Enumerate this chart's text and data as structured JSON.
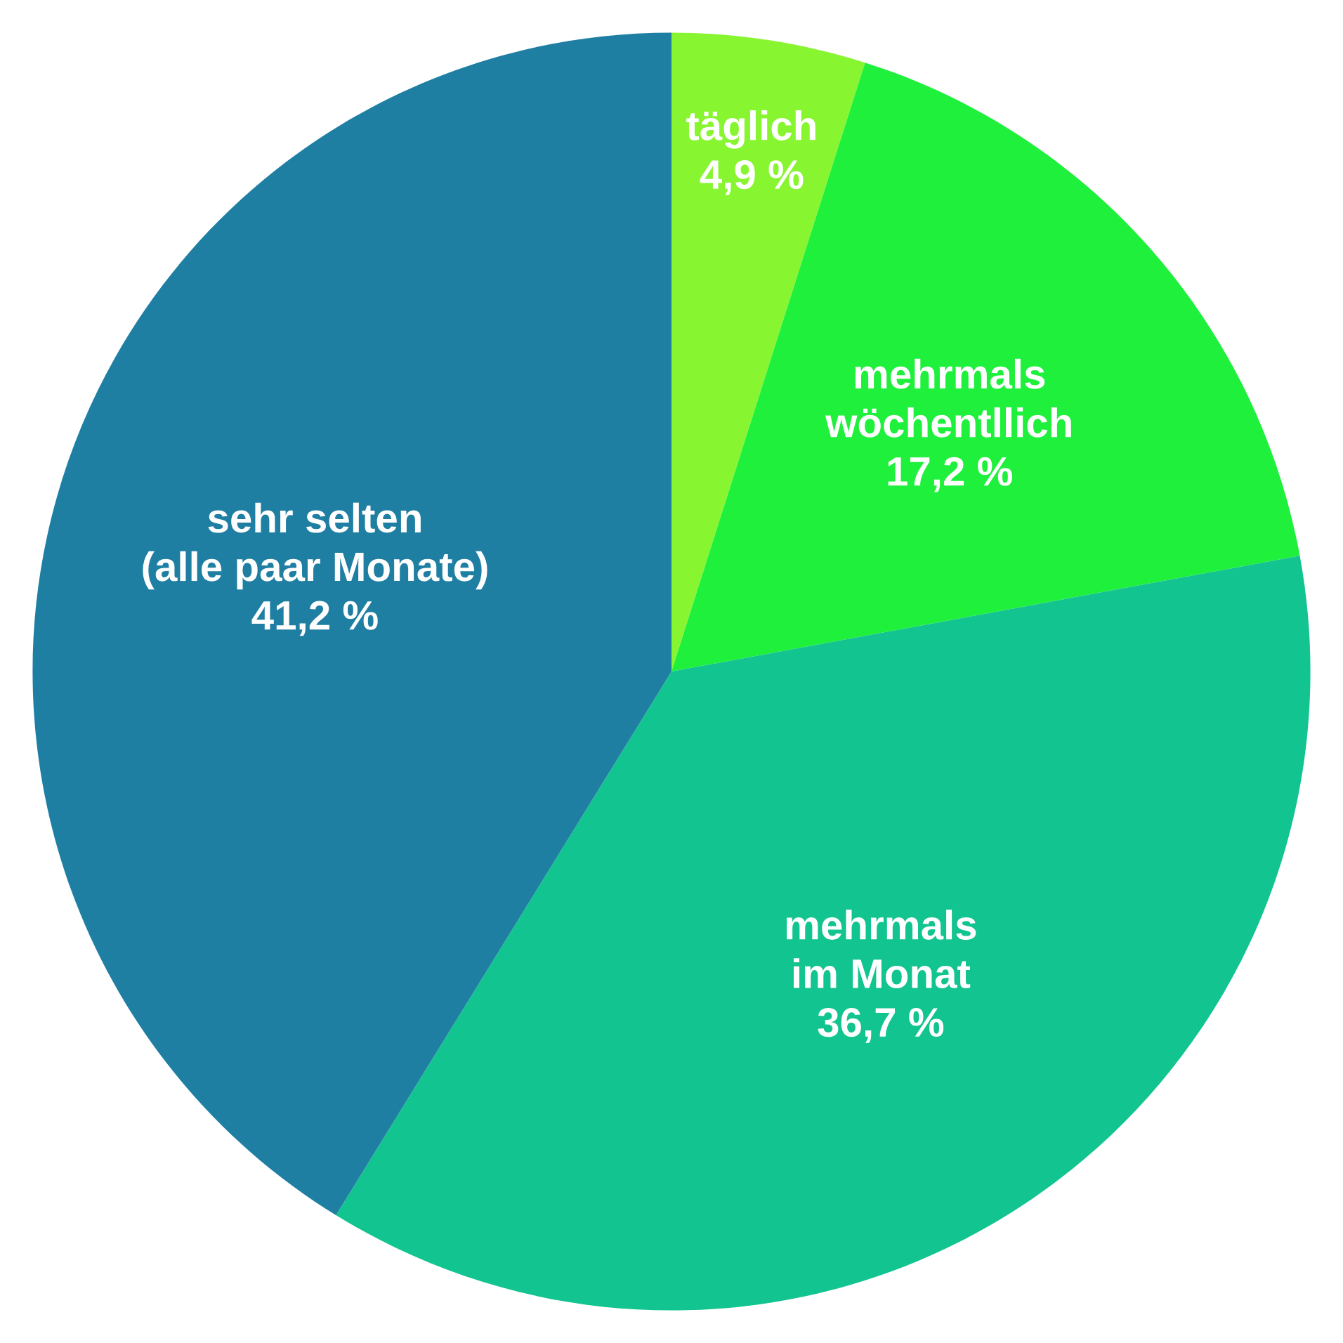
{
  "chart_data": {
    "type": "pie",
    "categories": [
      "täglich",
      "mehrmals\nwöchentllich",
      "mehrmals\nim Monat",
      "sehr selten\n(alle paar Monate)"
    ],
    "values": [
      4.9,
      17.2,
      36.7,
      41.2
    ],
    "colors": [
      "#88f531",
      "#1ef03c",
      "#12c48f",
      "#1f7fa3"
    ],
    "value_labels": [
      "4,9 %",
      "17,2 %",
      "36,7 %",
      "41,2 %"
    ],
    "legend": false
  }
}
